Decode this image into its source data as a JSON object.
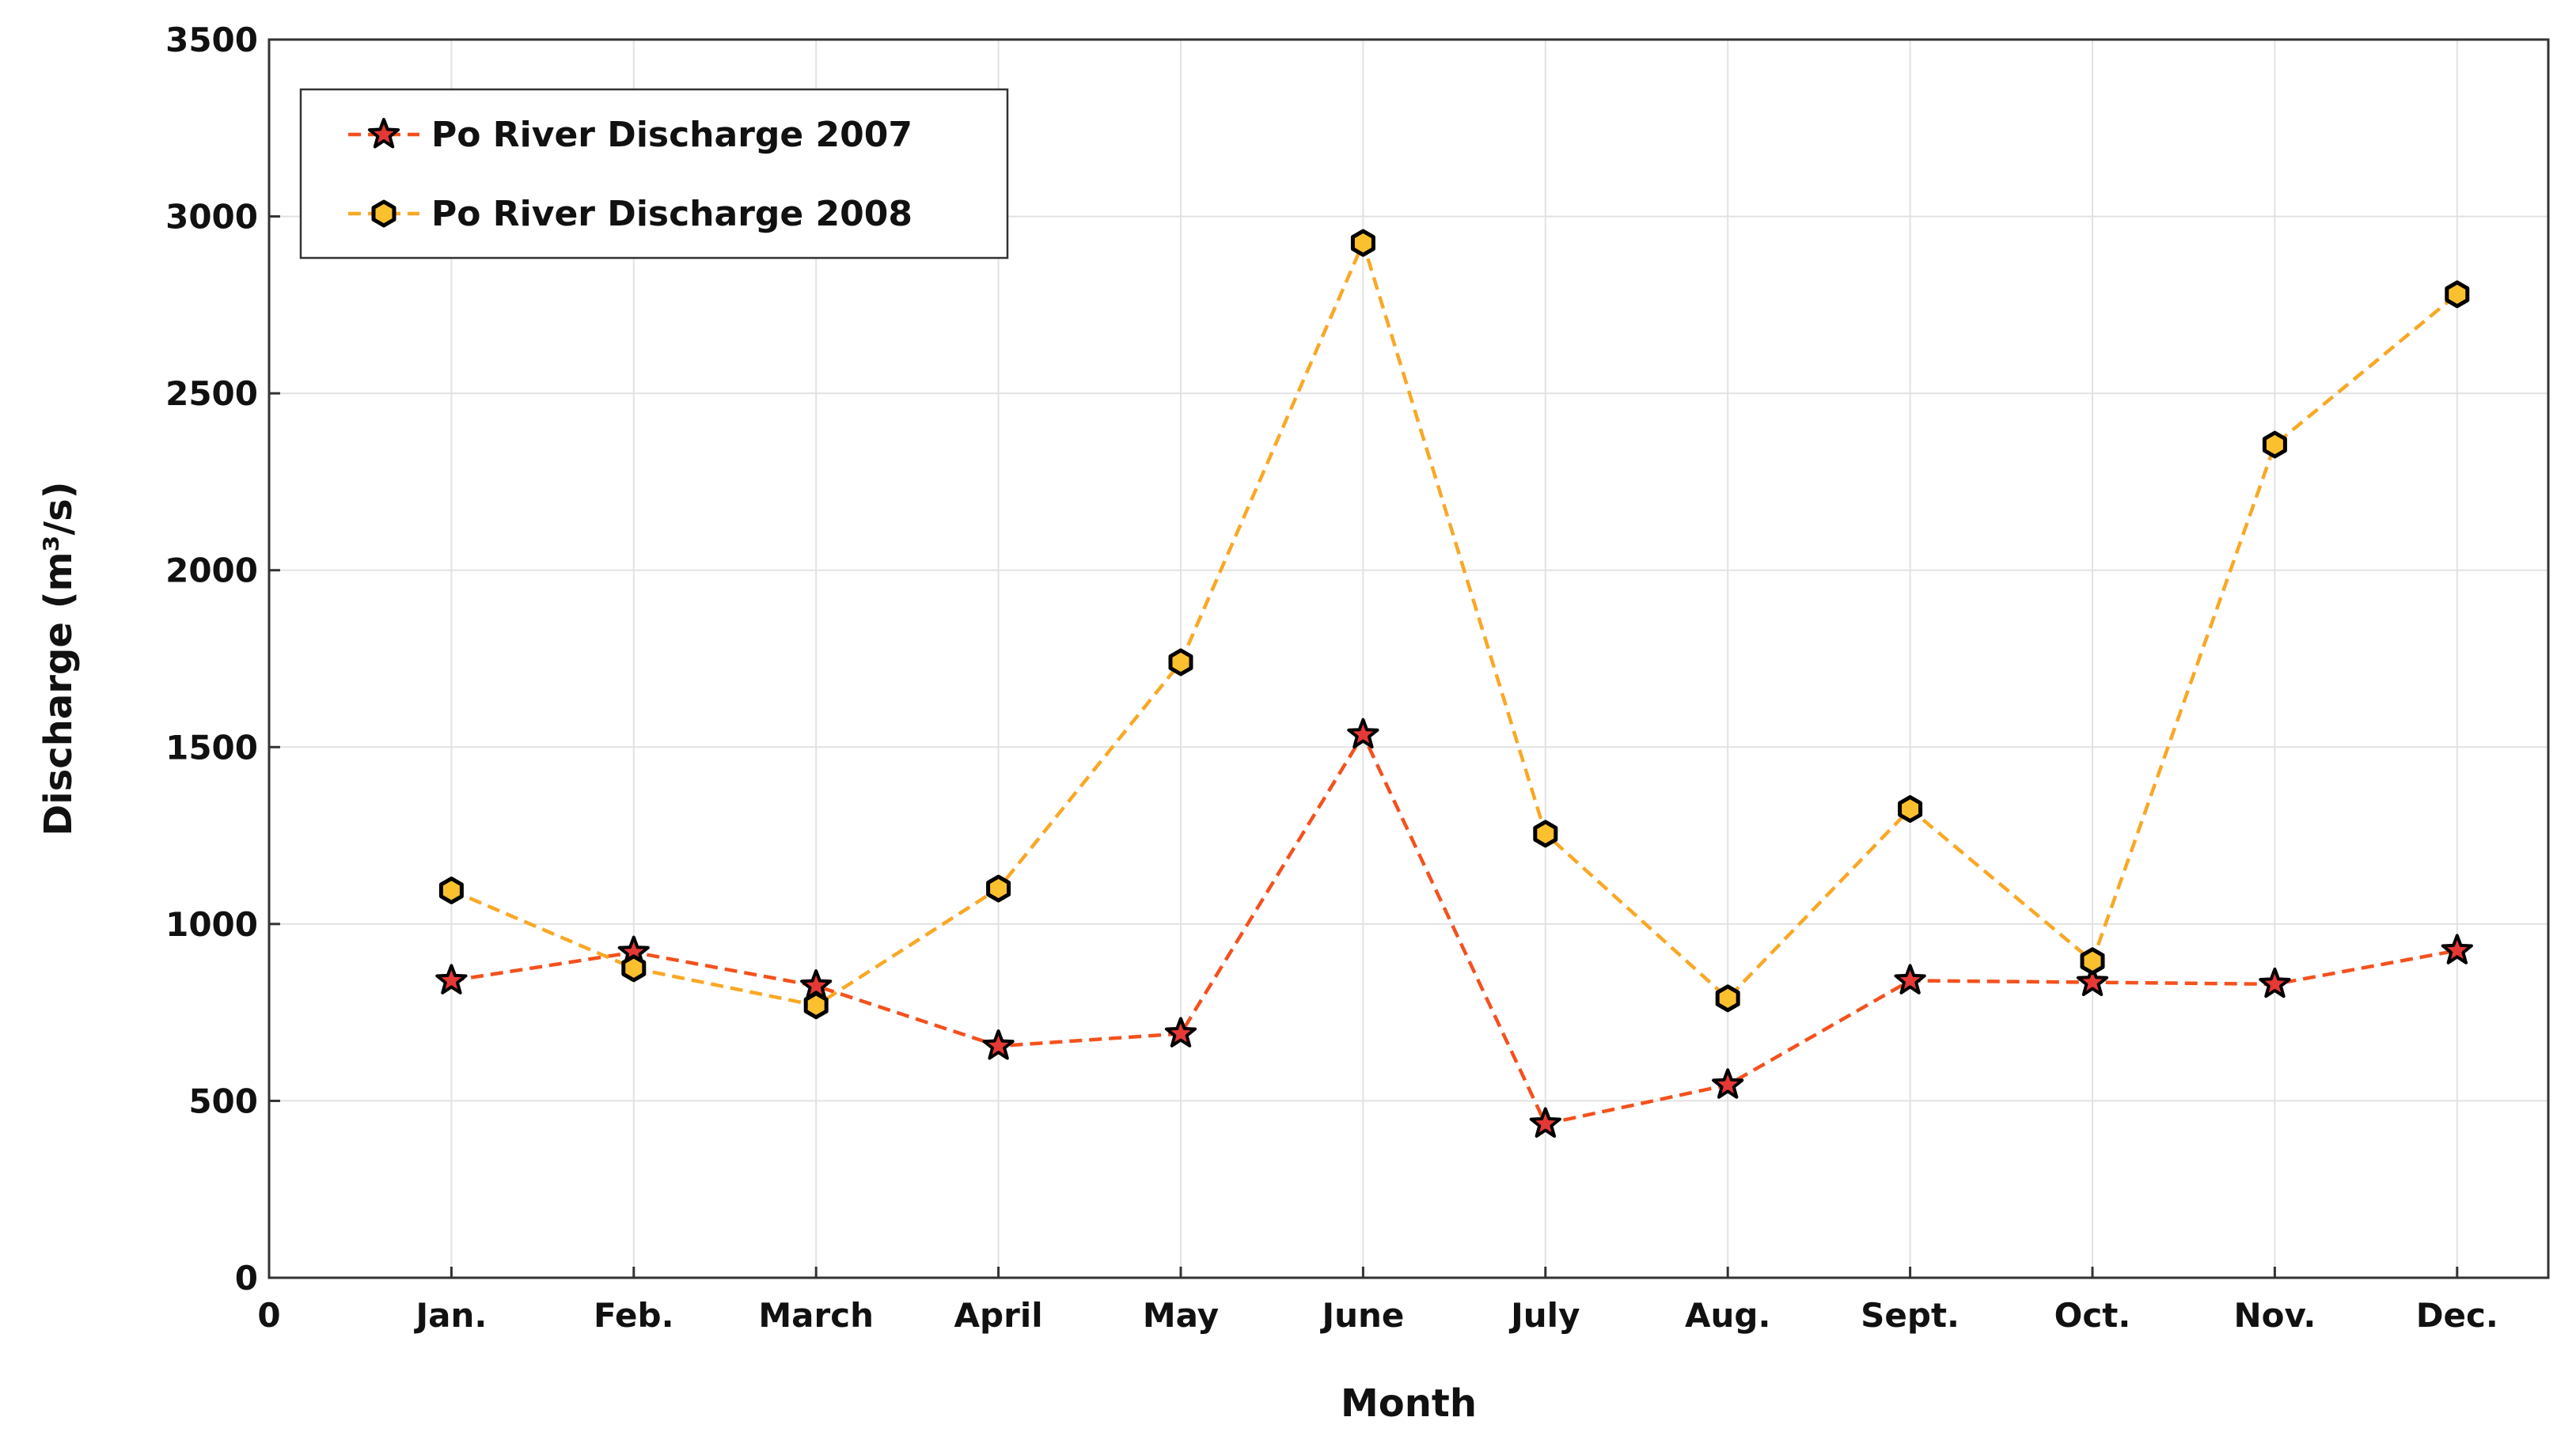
{
  "chart_data": {
    "type": "line",
    "title": "",
    "xlabel": "Month",
    "ylabel": "Discharge (m³/s)",
    "categories": [
      "Jan.",
      "Feb.",
      "March",
      "April",
      "May",
      "June",
      "July",
      "Aug.",
      "Sept.",
      "Oct.",
      "Nov.",
      "Dec."
    ],
    "x_zero_label": "0",
    "xlim": [
      0,
      12.5
    ],
    "ylim": [
      0,
      3500
    ],
    "yticks": [
      0,
      500,
      1000,
      1500,
      2000,
      2500,
      3000,
      3500
    ],
    "grid": true,
    "legend_position": "top-left",
    "series": [
      {
        "name": "Po River Discharge 2007",
        "color": "#f4511e",
        "marker": "star",
        "marker_fill": "#e53935",
        "line_style": "dashed",
        "values": [
          840,
          920,
          825,
          655,
          690,
          1535,
          435,
          545,
          840,
          835,
          830,
          925
        ]
      },
      {
        "name": "Po River Discharge 2008",
        "color": "#f9a825",
        "marker": "hexagon",
        "marker_fill": "#fbc02d",
        "line_style": "dashed",
        "values": [
          1095,
          875,
          770,
          1100,
          1740,
          2925,
          1255,
          790,
          1325,
          895,
          2355,
          2780
        ]
      }
    ]
  }
}
